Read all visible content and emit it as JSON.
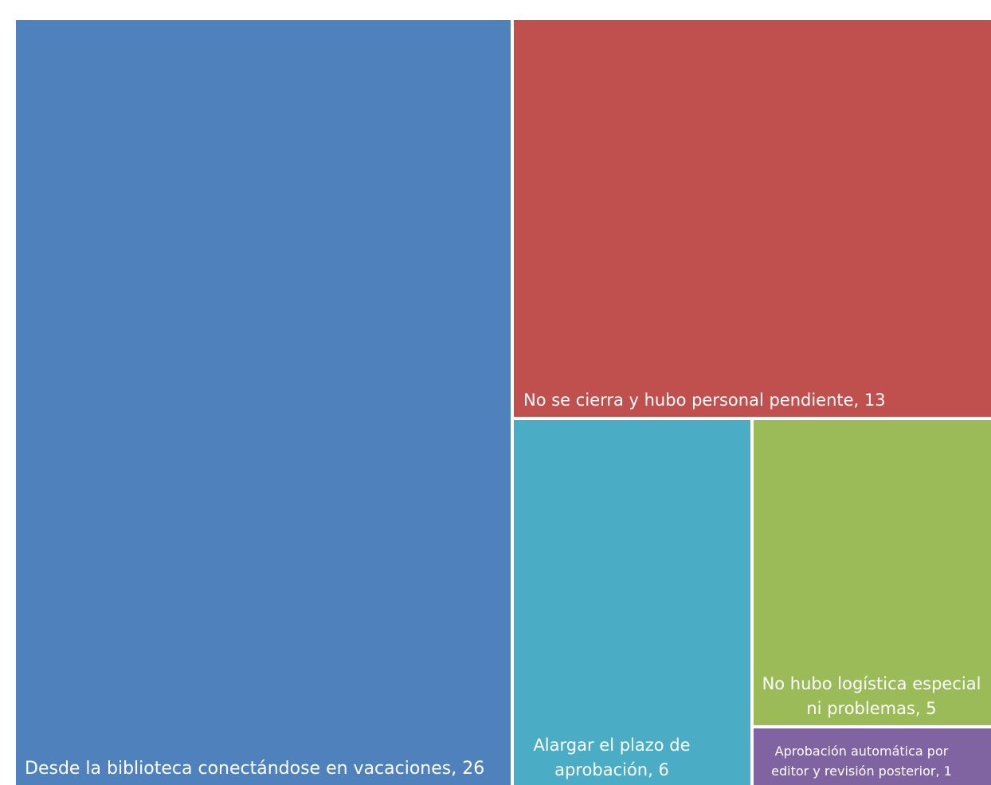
{
  "chart_data": {
    "type": "treemap",
    "items": [
      {
        "label": "Desde la biblioteca conectándose en vacaciones, 26",
        "category": "Desde la biblioteca conectándose en vacaciones",
        "value": 26,
        "color": "#4F81BD"
      },
      {
        "label": "No se cierra y hubo personal pendiente, 13",
        "category": "No se cierra y hubo personal pendiente",
        "value": 13,
        "color": "#C0504D"
      },
      {
        "label": "Alargar el plazo de aprobación, 6",
        "category": "Alargar el plazo de aprobación",
        "value": 6,
        "color": "#4BACC6"
      },
      {
        "label": "No hubo logística especial ni problemas, 5",
        "category": "No hubo logística especial ni problemas",
        "value": 5,
        "color": "#9BBB59"
      },
      {
        "label": "Aprobación automática por editor y revisión posterior, 1",
        "category": "Aprobación automática por editor y revisión posterior",
        "value": 1,
        "color": "#8064A2"
      }
    ]
  }
}
